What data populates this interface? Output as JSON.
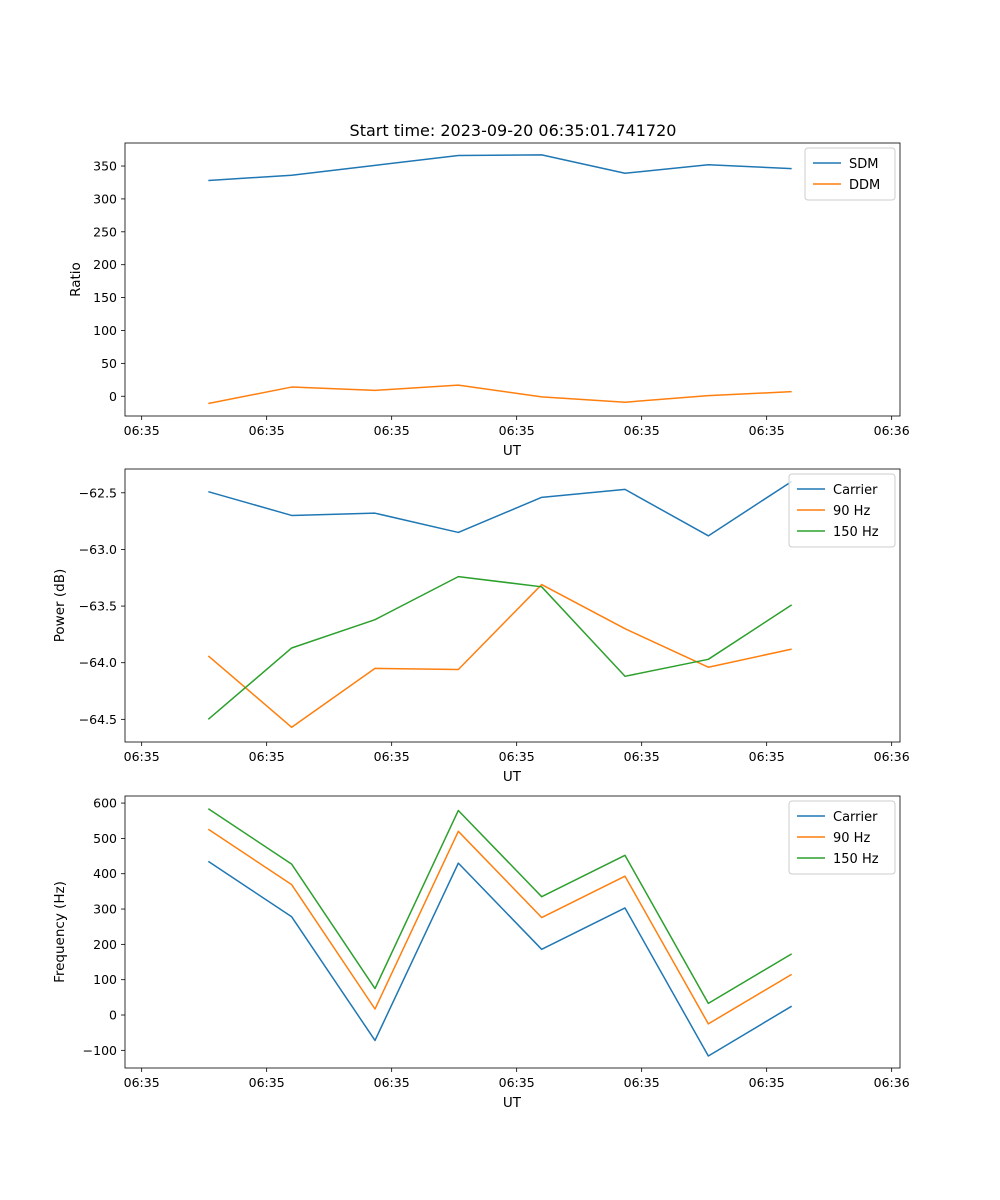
{
  "figure_title": "Start time: 2023-09-20 06:35:01.741720",
  "colors": {
    "blue": "#1f77b4",
    "orange": "#ff7f0e",
    "green": "#2ca02c"
  },
  "chart_data": [
    {
      "type": "line",
      "title": "Start time: 2023-09-20 06:35:01.741720",
      "xlabel": "UT",
      "ylabel": "Ratio",
      "x": [
        1,
        2,
        3,
        4,
        5,
        6,
        7,
        8
      ],
      "xlim": [
        0,
        9.3
      ],
      "xticks": [
        0.2,
        1.7,
        3.2,
        4.7,
        6.2,
        7.7,
        9.2
      ],
      "xtick_labels": [
        "06:35",
        "06:35",
        "06:35",
        "06:35",
        "06:35",
        "06:35",
        "06:36"
      ],
      "ylim": [
        -30,
        385
      ],
      "yticks": [
        0,
        50,
        100,
        150,
        200,
        250,
        300,
        350
      ],
      "ytick_labels": [
        "0",
        "50",
        "100",
        "150",
        "200",
        "250",
        "300",
        "350"
      ],
      "legend_position": "top-right",
      "series": [
        {
          "name": "SDM",
          "color": "#1f77b4",
          "values": [
            328,
            336,
            351,
            366,
            367,
            339,
            352,
            346
          ]
        },
        {
          "name": "DDM",
          "color": "#ff7f0e",
          "values": [
            -11,
            14,
            9,
            17,
            -1,
            -9,
            1,
            7
          ]
        }
      ]
    },
    {
      "type": "line",
      "title": "",
      "xlabel": "UT",
      "ylabel": "Power (dB)",
      "x": [
        1,
        2,
        3,
        4,
        5,
        6,
        7,
        8
      ],
      "xlim": [
        0,
        9.3
      ],
      "xticks": [
        0.2,
        1.7,
        3.2,
        4.7,
        6.2,
        7.7,
        9.2
      ],
      "xtick_labels": [
        "06:35",
        "06:35",
        "06:35",
        "06:35",
        "06:35",
        "06:35",
        "06:36"
      ],
      "ylim": [
        -64.7,
        -62.29
      ],
      "yticks": [
        -64.5,
        -64.0,
        -63.5,
        -63.0,
        -62.5
      ],
      "ytick_labels": [
        "−64.5",
        "−64.0",
        "−63.5",
        "−63.0",
        "−62.5"
      ],
      "legend_position": "top-right",
      "series": [
        {
          "name": "Carrier",
          "color": "#1f77b4",
          "values": [
            -62.49,
            -62.7,
            -62.68,
            -62.85,
            -62.54,
            -62.47,
            -62.88,
            -62.4
          ]
        },
        {
          "name": "90 Hz",
          "color": "#ff7f0e",
          "values": [
            -63.94,
            -64.57,
            -64.05,
            -64.06,
            -63.31,
            -63.7,
            -64.04,
            -63.88
          ]
        },
        {
          "name": "150 Hz",
          "color": "#2ca02c",
          "values": [
            -64.5,
            -63.87,
            -63.62,
            -63.24,
            -63.33,
            -64.12,
            -63.97,
            -63.49
          ]
        }
      ]
    },
    {
      "type": "line",
      "title": "",
      "xlabel": "UT",
      "ylabel": "Frequency (Hz)",
      "x": [
        1,
        2,
        3,
        4,
        5,
        6,
        7,
        8
      ],
      "xlim": [
        0,
        9.3
      ],
      "xticks": [
        0.2,
        1.7,
        3.2,
        4.7,
        6.2,
        7.7,
        9.2
      ],
      "xtick_labels": [
        "06:35",
        "06:35",
        "06:35",
        "06:35",
        "06:35",
        "06:35",
        "06:36"
      ],
      "ylim": [
        -150,
        620
      ],
      "yticks": [
        -100,
        0,
        100,
        200,
        300,
        400,
        500,
        600
      ],
      "ytick_labels": [
        "−100",
        "0",
        "100",
        "200",
        "300",
        "400",
        "500",
        "600"
      ],
      "legend_position": "top-right",
      "series": [
        {
          "name": "Carrier",
          "color": "#1f77b4",
          "values": [
            435,
            278,
            -72,
            430,
            186,
            303,
            -116,
            25
          ]
        },
        {
          "name": "90 Hz",
          "color": "#ff7f0e",
          "values": [
            526,
            369,
            17,
            520,
            276,
            393,
            -25,
            115
          ]
        },
        {
          "name": "150 Hz",
          "color": "#2ca02c",
          "values": [
            584,
            427,
            75,
            579,
            335,
            452,
            33,
            173
          ]
        }
      ]
    }
  ]
}
